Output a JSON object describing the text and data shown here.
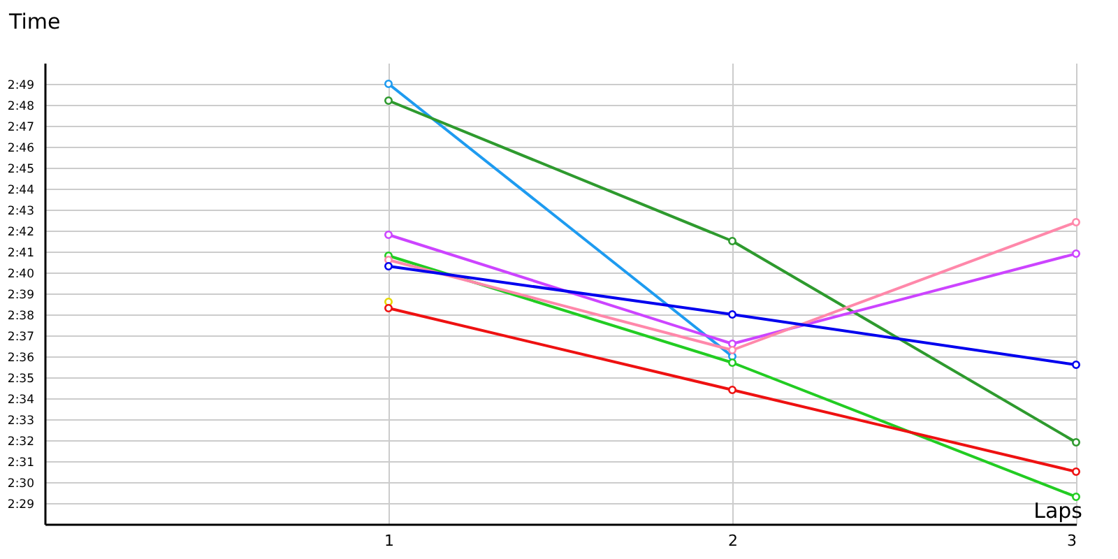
{
  "chart_data": {
    "type": "line",
    "xlabel": "Laps",
    "ylabel": "Time",
    "x": [
      1,
      2,
      3
    ],
    "xlim": [
      0,
      3
    ],
    "xticks": [
      1,
      2,
      3
    ],
    "ylim": [
      148,
      170
    ],
    "yticks": [
      {
        "value": 149,
        "label": "2:29"
      },
      {
        "value": 150,
        "label": "2:30"
      },
      {
        "value": 151,
        "label": "2:31"
      },
      {
        "value": 152,
        "label": "2:32"
      },
      {
        "value": 153,
        "label": "2:33"
      },
      {
        "value": 154,
        "label": "2:34"
      },
      {
        "value": 155,
        "label": "2:35"
      },
      {
        "value": 156,
        "label": "2:36"
      },
      {
        "value": 157,
        "label": "2:37"
      },
      {
        "value": 158,
        "label": "2:38"
      },
      {
        "value": 159,
        "label": "2:39"
      },
      {
        "value": 160,
        "label": "2:40"
      },
      {
        "value": 161,
        "label": "2:41"
      },
      {
        "value": 162,
        "label": "2:42"
      },
      {
        "value": 163,
        "label": "2:43"
      },
      {
        "value": 164,
        "label": "2:44"
      },
      {
        "value": 165,
        "label": "2:45"
      },
      {
        "value": 166,
        "label": "2:46"
      },
      {
        "value": 167,
        "label": "2:47"
      },
      {
        "value": 168,
        "label": "2:48"
      },
      {
        "value": 169,
        "label": "2:49"
      }
    ],
    "grid": true,
    "marker": "circle",
    "line_style": "solid",
    "series": [
      {
        "color": "#1e9bf0",
        "values": [
          169.0,
          156.0,
          null
        ]
      },
      {
        "color": "#2e9a2e",
        "values": [
          168.2,
          161.5,
          151.9
        ]
      },
      {
        "color": "#cc44ff",
        "values": [
          161.8,
          156.6,
          160.9
        ]
      },
      {
        "color": "#22cc22",
        "values": [
          160.8,
          155.7,
          149.3
        ]
      },
      {
        "color": "#ff88aa",
        "values": [
          160.6,
          156.3,
          162.4
        ]
      },
      {
        "color": "#0000ee",
        "values": [
          160.3,
          158.0,
          155.6
        ]
      },
      {
        "color": "#e6d800",
        "values": [
          158.6,
          null,
          null
        ]
      },
      {
        "color": "#ee1111",
        "values": [
          158.3,
          154.4,
          150.5
        ]
      }
    ]
  }
}
